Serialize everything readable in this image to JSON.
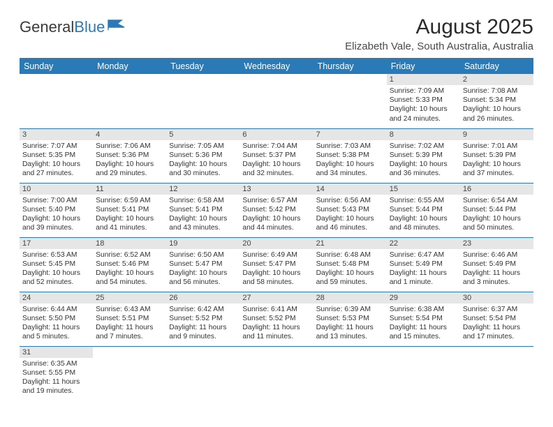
{
  "brand": {
    "part1": "General",
    "part2": "Blue"
  },
  "title": "August 2025",
  "location": "Elizabeth Vale, South Australia, Australia",
  "weekdays": [
    "Sunday",
    "Monday",
    "Tuesday",
    "Wednesday",
    "Thursday",
    "Friday",
    "Saturday"
  ],
  "colors": {
    "header_bg": "#2a7ab8",
    "header_text": "#ffffff",
    "daynum_bg": "#e6e6e6",
    "border": "#2a7ab8"
  },
  "grid": [
    [
      null,
      null,
      null,
      null,
      null,
      {
        "n": "1",
        "sr": "Sunrise: 7:09 AM",
        "ss": "Sunset: 5:33 PM",
        "dl": "Daylight: 10 hours and 24 minutes."
      },
      {
        "n": "2",
        "sr": "Sunrise: 7:08 AM",
        "ss": "Sunset: 5:34 PM",
        "dl": "Daylight: 10 hours and 26 minutes."
      }
    ],
    [
      {
        "n": "3",
        "sr": "Sunrise: 7:07 AM",
        "ss": "Sunset: 5:35 PM",
        "dl": "Daylight: 10 hours and 27 minutes."
      },
      {
        "n": "4",
        "sr": "Sunrise: 7:06 AM",
        "ss": "Sunset: 5:36 PM",
        "dl": "Daylight: 10 hours and 29 minutes."
      },
      {
        "n": "5",
        "sr": "Sunrise: 7:05 AM",
        "ss": "Sunset: 5:36 PM",
        "dl": "Daylight: 10 hours and 30 minutes."
      },
      {
        "n": "6",
        "sr": "Sunrise: 7:04 AM",
        "ss": "Sunset: 5:37 PM",
        "dl": "Daylight: 10 hours and 32 minutes."
      },
      {
        "n": "7",
        "sr": "Sunrise: 7:03 AM",
        "ss": "Sunset: 5:38 PM",
        "dl": "Daylight: 10 hours and 34 minutes."
      },
      {
        "n": "8",
        "sr": "Sunrise: 7:02 AM",
        "ss": "Sunset: 5:39 PM",
        "dl": "Daylight: 10 hours and 36 minutes."
      },
      {
        "n": "9",
        "sr": "Sunrise: 7:01 AM",
        "ss": "Sunset: 5:39 PM",
        "dl": "Daylight: 10 hours and 37 minutes."
      }
    ],
    [
      {
        "n": "10",
        "sr": "Sunrise: 7:00 AM",
        "ss": "Sunset: 5:40 PM",
        "dl": "Daylight: 10 hours and 39 minutes."
      },
      {
        "n": "11",
        "sr": "Sunrise: 6:59 AM",
        "ss": "Sunset: 5:41 PM",
        "dl": "Daylight: 10 hours and 41 minutes."
      },
      {
        "n": "12",
        "sr": "Sunrise: 6:58 AM",
        "ss": "Sunset: 5:41 PM",
        "dl": "Daylight: 10 hours and 43 minutes."
      },
      {
        "n": "13",
        "sr": "Sunrise: 6:57 AM",
        "ss": "Sunset: 5:42 PM",
        "dl": "Daylight: 10 hours and 44 minutes."
      },
      {
        "n": "14",
        "sr": "Sunrise: 6:56 AM",
        "ss": "Sunset: 5:43 PM",
        "dl": "Daylight: 10 hours and 46 minutes."
      },
      {
        "n": "15",
        "sr": "Sunrise: 6:55 AM",
        "ss": "Sunset: 5:44 PM",
        "dl": "Daylight: 10 hours and 48 minutes."
      },
      {
        "n": "16",
        "sr": "Sunrise: 6:54 AM",
        "ss": "Sunset: 5:44 PM",
        "dl": "Daylight: 10 hours and 50 minutes."
      }
    ],
    [
      {
        "n": "17",
        "sr": "Sunrise: 6:53 AM",
        "ss": "Sunset: 5:45 PM",
        "dl": "Daylight: 10 hours and 52 minutes."
      },
      {
        "n": "18",
        "sr": "Sunrise: 6:52 AM",
        "ss": "Sunset: 5:46 PM",
        "dl": "Daylight: 10 hours and 54 minutes."
      },
      {
        "n": "19",
        "sr": "Sunrise: 6:50 AM",
        "ss": "Sunset: 5:47 PM",
        "dl": "Daylight: 10 hours and 56 minutes."
      },
      {
        "n": "20",
        "sr": "Sunrise: 6:49 AM",
        "ss": "Sunset: 5:47 PM",
        "dl": "Daylight: 10 hours and 58 minutes."
      },
      {
        "n": "21",
        "sr": "Sunrise: 6:48 AM",
        "ss": "Sunset: 5:48 PM",
        "dl": "Daylight: 10 hours and 59 minutes."
      },
      {
        "n": "22",
        "sr": "Sunrise: 6:47 AM",
        "ss": "Sunset: 5:49 PM",
        "dl": "Daylight: 11 hours and 1 minute."
      },
      {
        "n": "23",
        "sr": "Sunrise: 6:46 AM",
        "ss": "Sunset: 5:49 PM",
        "dl": "Daylight: 11 hours and 3 minutes."
      }
    ],
    [
      {
        "n": "24",
        "sr": "Sunrise: 6:44 AM",
        "ss": "Sunset: 5:50 PM",
        "dl": "Daylight: 11 hours and 5 minutes."
      },
      {
        "n": "25",
        "sr": "Sunrise: 6:43 AM",
        "ss": "Sunset: 5:51 PM",
        "dl": "Daylight: 11 hours and 7 minutes."
      },
      {
        "n": "26",
        "sr": "Sunrise: 6:42 AM",
        "ss": "Sunset: 5:52 PM",
        "dl": "Daylight: 11 hours and 9 minutes."
      },
      {
        "n": "27",
        "sr": "Sunrise: 6:41 AM",
        "ss": "Sunset: 5:52 PM",
        "dl": "Daylight: 11 hours and 11 minutes."
      },
      {
        "n": "28",
        "sr": "Sunrise: 6:39 AM",
        "ss": "Sunset: 5:53 PM",
        "dl": "Daylight: 11 hours and 13 minutes."
      },
      {
        "n": "29",
        "sr": "Sunrise: 6:38 AM",
        "ss": "Sunset: 5:54 PM",
        "dl": "Daylight: 11 hours and 15 minutes."
      },
      {
        "n": "30",
        "sr": "Sunrise: 6:37 AM",
        "ss": "Sunset: 5:54 PM",
        "dl": "Daylight: 11 hours and 17 minutes."
      }
    ],
    [
      {
        "n": "31",
        "sr": "Sunrise: 6:35 AM",
        "ss": "Sunset: 5:55 PM",
        "dl": "Daylight: 11 hours and 19 minutes."
      },
      null,
      null,
      null,
      null,
      null,
      null
    ]
  ]
}
